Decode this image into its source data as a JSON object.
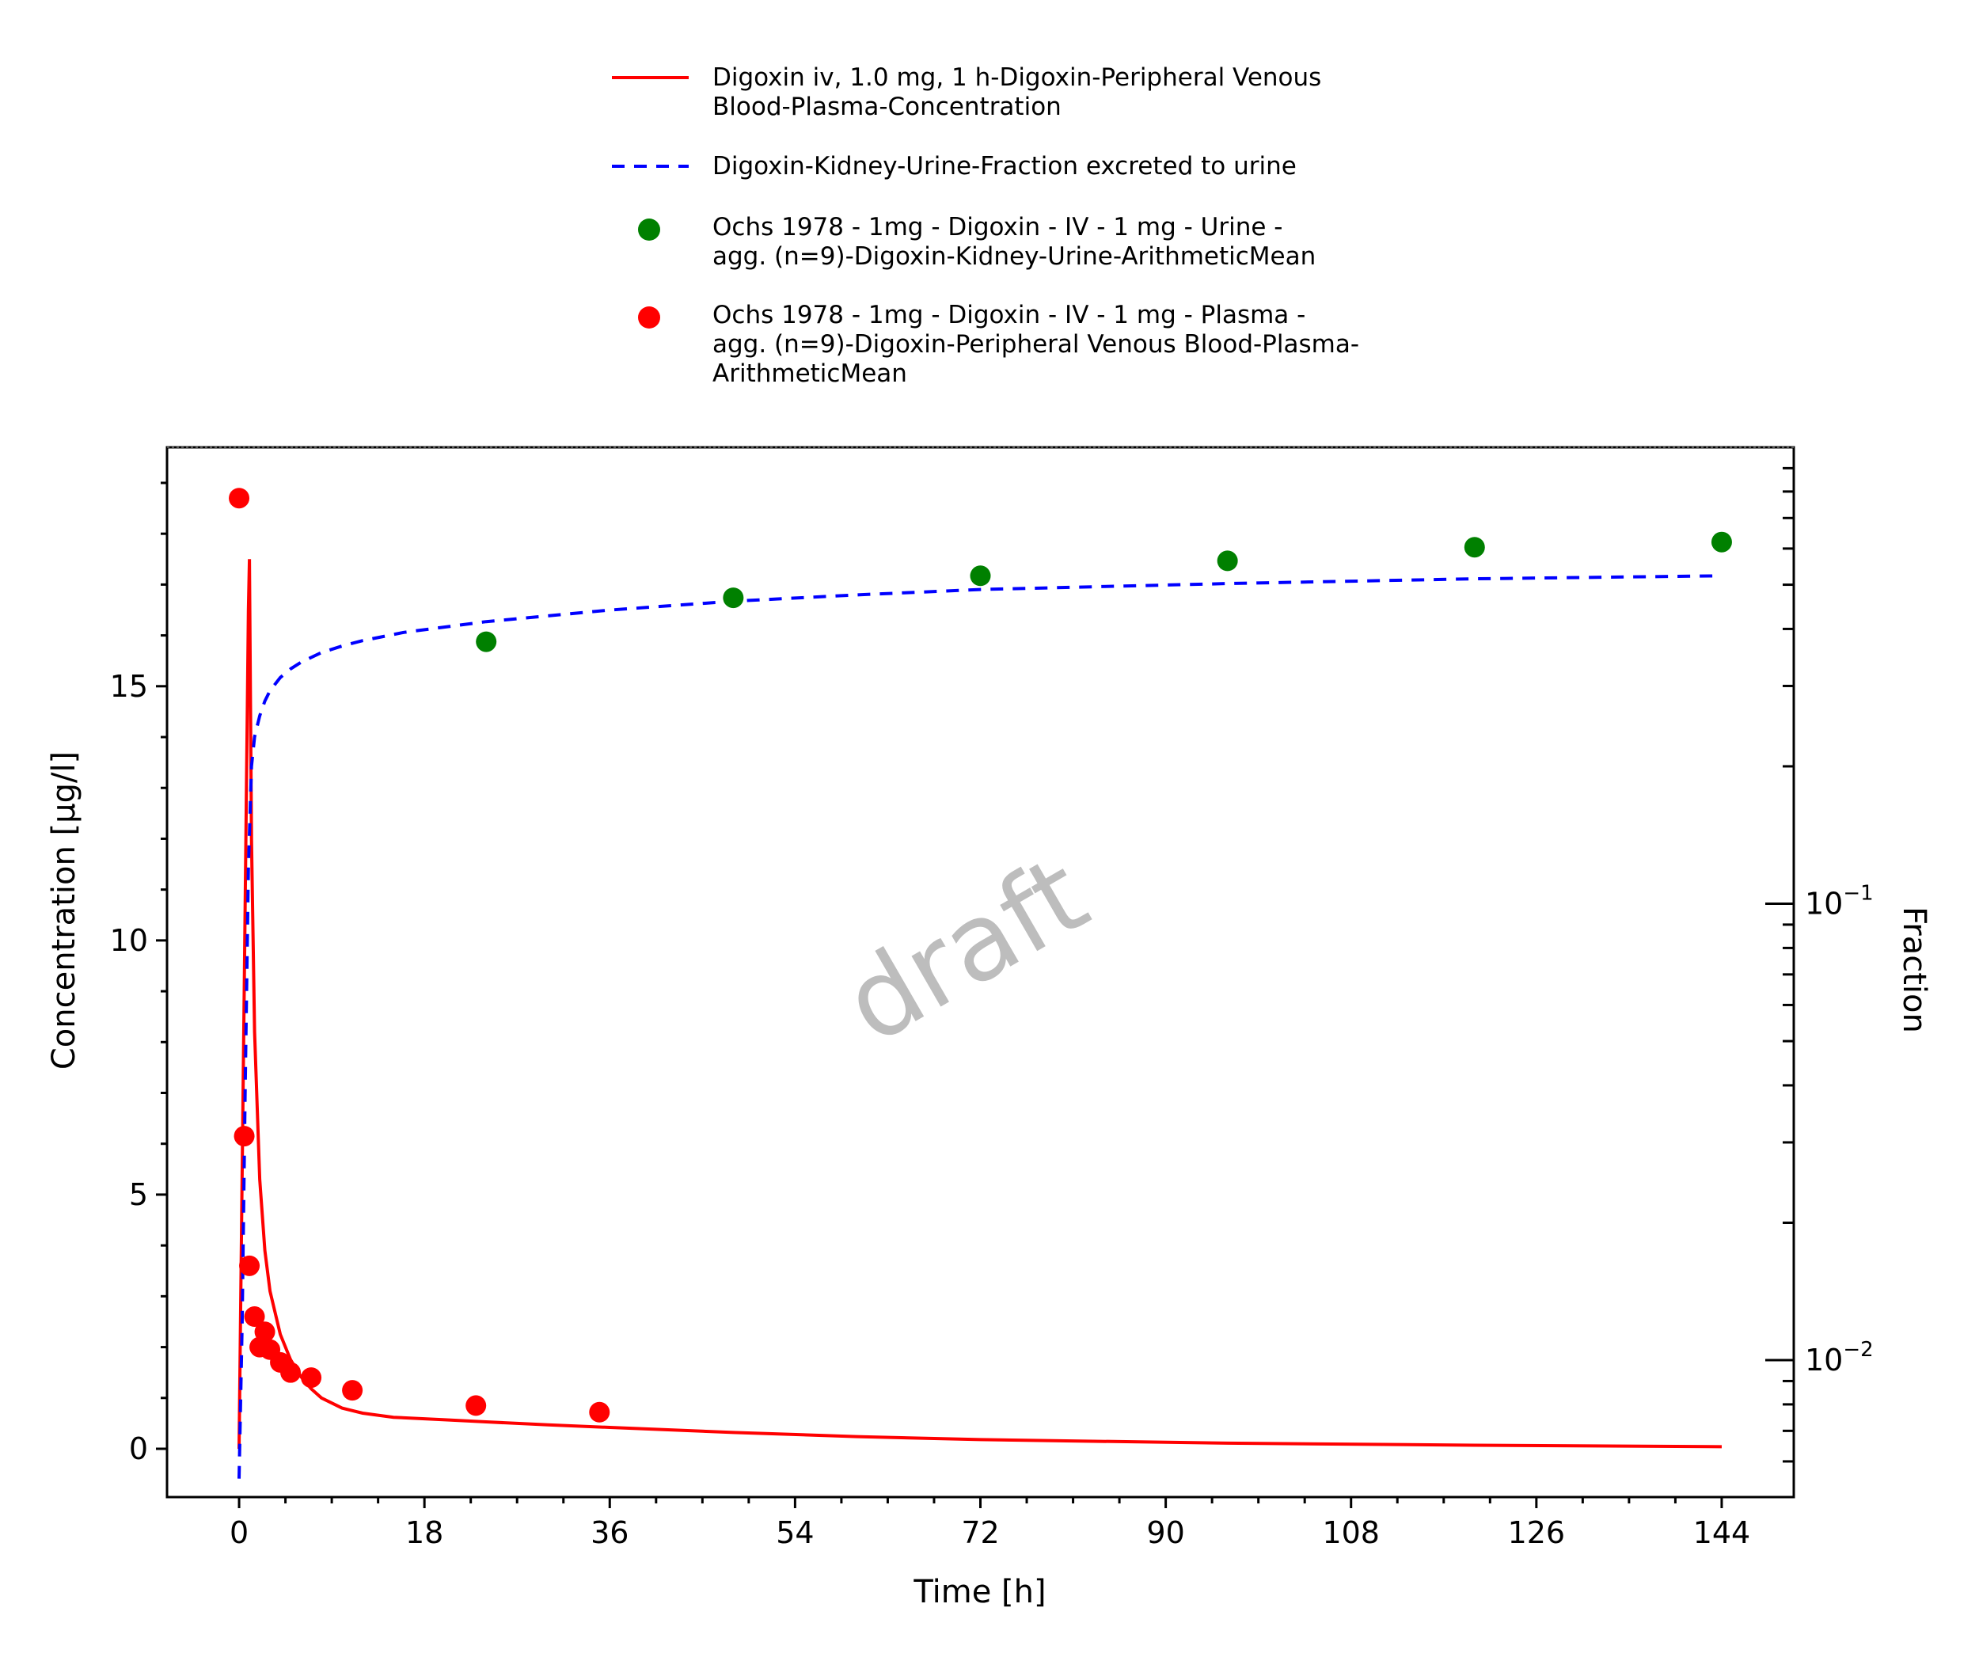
{
  "chart_data": {
    "type": "line",
    "xlabel": "Time [h]",
    "ylabel": "Concentration [µg/l]",
    "y2label": "Fraction",
    "xlim": [
      -7,
      151
    ],
    "ylim": [
      -0.95,
      19.7
    ],
    "y2lim_log10": [
      -2.3,
      0.0
    ],
    "y2scale": "log",
    "xticks": [
      0,
      18,
      36,
      54,
      72,
      90,
      108,
      126,
      144
    ],
    "yticks": [
      0,
      5,
      10,
      15
    ],
    "y2ticks": [
      {
        "value": 0.1,
        "base": "10",
        "exp": "−1"
      },
      {
        "value": 0.01,
        "base": "10",
        "exp": "−2"
      }
    ],
    "grid": false,
    "legend_position": "top",
    "watermark": "draft",
    "series": [
      {
        "name": "Digoxin iv, 1.0 mg, 1 h-Digoxin-Peripheral Venous Blood-Plasma-Concentration",
        "legend_lines": [
          "Digoxin iv, 1.0 mg, 1 h-Digoxin-Peripheral Venous",
          "Blood-Plasma-Concentration"
        ],
        "kind": "line",
        "style": "solid",
        "color": "#ff0000",
        "axis": "left",
        "x": [
          0,
          0.5,
          0.9,
          1.0,
          1.2,
          1.5,
          2,
          2.5,
          3,
          4,
          5,
          6,
          7,
          8,
          10,
          12,
          15,
          20,
          24,
          30,
          36,
          48,
          60,
          72,
          96,
          120,
          144
        ],
        "y": [
          0,
          9.0,
          16.5,
          17.5,
          12.0,
          8.2,
          5.3,
          3.9,
          3.1,
          2.25,
          1.75,
          1.42,
          1.18,
          1.0,
          0.8,
          0.7,
          0.62,
          0.57,
          0.53,
          0.47,
          0.42,
          0.32,
          0.24,
          0.18,
          0.11,
          0.07,
          0.04
        ]
      },
      {
        "name": "Digoxin-Kidney-Urine-Fraction excreted to urine",
        "legend_lines": [
          "Digoxin-Kidney-Urine-Fraction excreted to urine"
        ],
        "kind": "line",
        "style": "dashed",
        "color": "#0000ff",
        "axis": "right",
        "x": [
          0,
          0.3,
          0.6,
          0.9,
          1.2,
          1.5,
          2,
          2.5,
          3,
          4,
          5,
          6,
          8,
          10,
          12,
          16,
          24,
          36,
          48,
          60,
          72,
          96,
          120,
          144
        ],
        "y": [
          0.0055,
          0.012,
          0.04,
          0.12,
          0.2,
          0.232,
          0.258,
          0.278,
          0.293,
          0.313,
          0.327,
          0.338,
          0.355,
          0.367,
          0.377,
          0.393,
          0.415,
          0.44,
          0.46,
          0.475,
          0.488,
          0.503,
          0.515,
          0.523
        ]
      },
      {
        "name": "Ochs 1978 - 1mg - Digoxin - IV - 1 mg - Urine - agg. (n=9)-Digoxin-Kidney-Urine-ArithmeticMean",
        "legend_lines": [
          "Ochs 1978 - 1mg - Digoxin - IV - 1 mg - Urine -",
          "agg. (n=9)-Digoxin-Kidney-Urine-ArithmeticMean"
        ],
        "kind": "scatter",
        "color": "#008000",
        "axis": "right",
        "x": [
          24,
          48,
          72,
          96,
          120,
          144
        ],
        "y": [
          0.375,
          0.468,
          0.523,
          0.564,
          0.604,
          0.62
        ]
      },
      {
        "name": "Ochs 1978 - 1mg - Digoxin - IV - 1 mg - Plasma - agg. (n=9)-Digoxin-Peripheral Venous Blood-Plasma-ArithmeticMean",
        "legend_lines": [
          "Ochs 1978 - 1mg - Digoxin - IV - 1 mg - Plasma -",
          "agg. (n=9)-Digoxin-Peripheral Venous Blood-Plasma-",
          "ArithmeticMean"
        ],
        "kind": "scatter",
        "color": "#ff0000",
        "axis": "left",
        "x": [
          0,
          0.5,
          1,
          1.5,
          2,
          2.5,
          3,
          4,
          5,
          7,
          11,
          23,
          35
        ],
        "y": [
          18.7,
          6.15,
          3.6,
          2.6,
          2.0,
          2.3,
          1.95,
          1.7,
          1.5,
          1.4,
          1.15,
          0.85,
          0.72
        ]
      }
    ]
  }
}
